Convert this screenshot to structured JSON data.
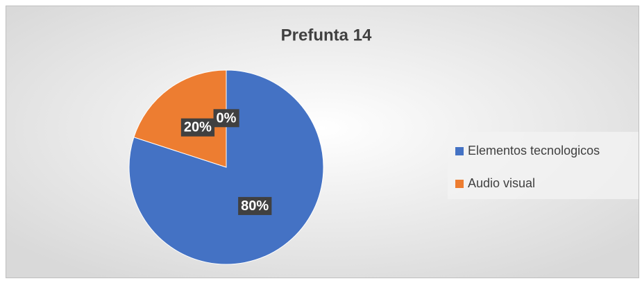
{
  "chart_data": {
    "type": "pie",
    "title": "Prefunta 14",
    "categories": [
      "Elementos tecnologicos",
      "Audio visual",
      null
    ],
    "values": [
      80,
      20,
      0
    ],
    "value_labels": [
      "80%",
      "20%",
      "0%"
    ],
    "colors": [
      "#4472c4",
      "#ed7d31",
      "#a5a5a5"
    ],
    "legend": "right"
  }
}
